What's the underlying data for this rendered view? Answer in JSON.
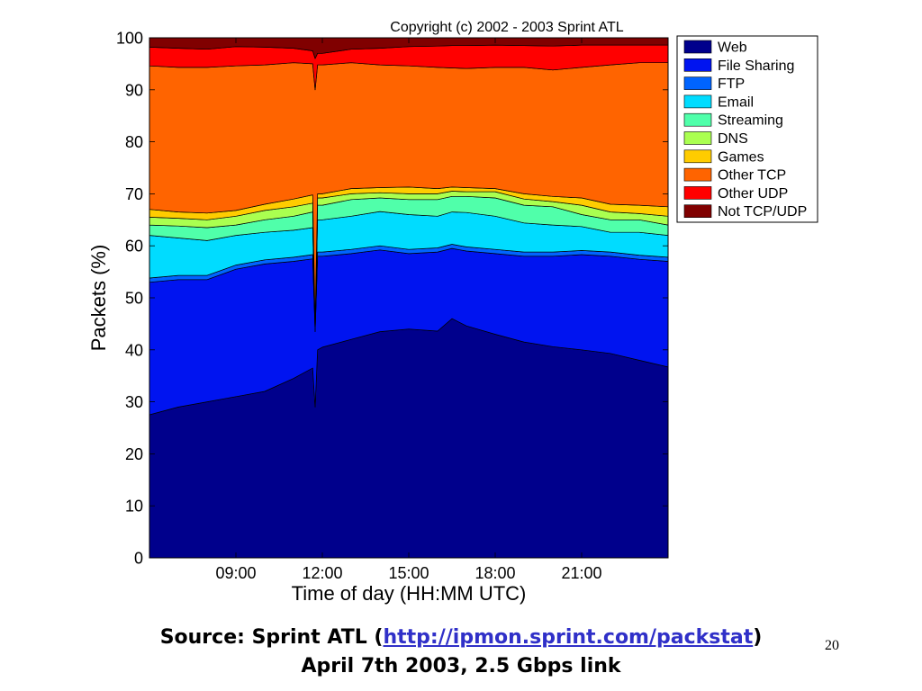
{
  "slide": {
    "source_prefix": "Source: Sprint ATL (",
    "source_link": "http://ipmon.sprint.com/packstat",
    "source_suffix": ")",
    "subtitle": "April 7th 2003, 2.5 Gbps link",
    "page_number": "20"
  },
  "chart_data": {
    "type": "area",
    "stacked": true,
    "title": "Copyright (c) 2002 - 2003 Sprint ATL",
    "xlabel": "Time of day (HH:MM UTC)",
    "ylabel": "Packets (%)",
    "xlim": [
      "06:00",
      "24:00"
    ],
    "ylim": [
      0,
      100
    ],
    "xticks": [
      "09:00",
      "12:00",
      "15:00",
      "18:00",
      "21:00"
    ],
    "yticks": [
      0,
      10,
      20,
      30,
      40,
      50,
      60,
      70,
      80,
      90,
      100
    ],
    "grid": false,
    "legend_position": "outside-right",
    "x": [
      "06:00",
      "07:00",
      "08:00",
      "09:00",
      "10:00",
      "11:00",
      "11:40",
      "11:45",
      "11:50",
      "12:00",
      "13:00",
      "14:00",
      "15:00",
      "16:00",
      "16:30",
      "17:00",
      "18:00",
      "19:00",
      "20:00",
      "21:00",
      "22:00",
      "23:00",
      "24:00"
    ],
    "series": [
      {
        "name": "Web",
        "color": "#00008c",
        "values": [
          27.5,
          29,
          30,
          31,
          32,
          34.5,
          36.5,
          29,
          40,
          40.5,
          42,
          43.5,
          44,
          43.6,
          46,
          44.6,
          43,
          41.5,
          40.6,
          40,
          39.3,
          38,
          36.7
        ]
      },
      {
        "name": "File Sharing",
        "color": "#0014f0",
        "values": [
          25.5,
          24.5,
          23.5,
          24.5,
          24.5,
          22.5,
          21.0,
          14.5,
          18.0,
          17.5,
          16.5,
          15.7,
          14.5,
          15.2,
          13.5,
          14.4,
          15.5,
          16.5,
          17.4,
          18.3,
          18.7,
          19.4,
          20.3
        ]
      },
      {
        "name": "FTP",
        "color": "#0064ff",
        "values": [
          0.8,
          0.8,
          0.8,
          0.8,
          0.8,
          0.8,
          0.8,
          0.5,
          0.8,
          0.8,
          0.8,
          0.8,
          0.8,
          0.8,
          0.8,
          0.8,
          0.8,
          0.8,
          0.8,
          0.8,
          0.8,
          0.8,
          0.8
        ]
      },
      {
        "name": "Email",
        "color": "#00dcff",
        "values": [
          8.2,
          7.2,
          6.7,
          5.7,
          5.3,
          5.2,
          5.2,
          0.5,
          6.2,
          6.2,
          6.4,
          6.6,
          6.7,
          6.1,
          6.2,
          6.6,
          6.4,
          5.6,
          5.2,
          4.6,
          3.8,
          4.4,
          4.2
        ]
      },
      {
        "name": "Streaming",
        "color": "#50ffaa",
        "values": [
          2.0,
          2.3,
          2.5,
          2.0,
          2.4,
          2.7,
          3.0,
          0.3,
          2.8,
          2.8,
          3.2,
          2.6,
          2.9,
          3.2,
          3.0,
          3.1,
          3.5,
          3.4,
          3.5,
          2.3,
          2.4,
          2.4,
          2.0
        ]
      },
      {
        "name": "DNS",
        "color": "#aaff50",
        "values": [
          1.5,
          1.5,
          1.5,
          1.7,
          1.8,
          1.8,
          1.7,
          0.3,
          1.4,
          1.4,
          1.1,
          1.0,
          1.1,
          1.1,
          1.0,
          0.9,
          1.2,
          1.2,
          1.0,
          1.8,
          1.5,
          1.2,
          1.7
        ]
      },
      {
        "name": "Games",
        "color": "#ffcc00",
        "values": [
          1.5,
          1.2,
          1.3,
          1.1,
          1.2,
          1.5,
          1.6,
          0.2,
          0.8,
          0.8,
          1.0,
          1.0,
          1.3,
          1.0,
          0.8,
          0.8,
          0.6,
          1.0,
          1.0,
          1.4,
          1.5,
          1.6,
          1.8
        ]
      },
      {
        "name": "Other TCP",
        "color": "#ff6400",
        "values": [
          27.6,
          27.8,
          28.0,
          27.8,
          26.8,
          26.2,
          25.2,
          44.7,
          24.8,
          24.8,
          24.2,
          23.6,
          23.3,
          23.3,
          22.9,
          22.9,
          23.3,
          24.3,
          24.3,
          25.1,
          26.8,
          27.4,
          27.7
        ]
      },
      {
        "name": "Other UDP",
        "color": "#ff0000",
        "values": [
          3.6,
          3.7,
          3.5,
          3.7,
          3.4,
          2.8,
          2.5,
          6.0,
          2.2,
          2.2,
          2.6,
          3.2,
          3.7,
          4.1,
          4.3,
          4.4,
          4.3,
          4.2,
          4.6,
          4.3,
          3.8,
          3.4,
          3.4
        ]
      },
      {
        "name": "Not TCP/UDP",
        "color": "#800000",
        "values": [
          1.8,
          2.0,
          2.2,
          1.7,
          1.8,
          2.0,
          2.5,
          4.0,
          3.0,
          3.0,
          2.2,
          2.0,
          1.7,
          1.6,
          1.5,
          1.5,
          1.4,
          1.5,
          1.6,
          1.4,
          1.4,
          1.4,
          1.4
        ]
      }
    ]
  }
}
